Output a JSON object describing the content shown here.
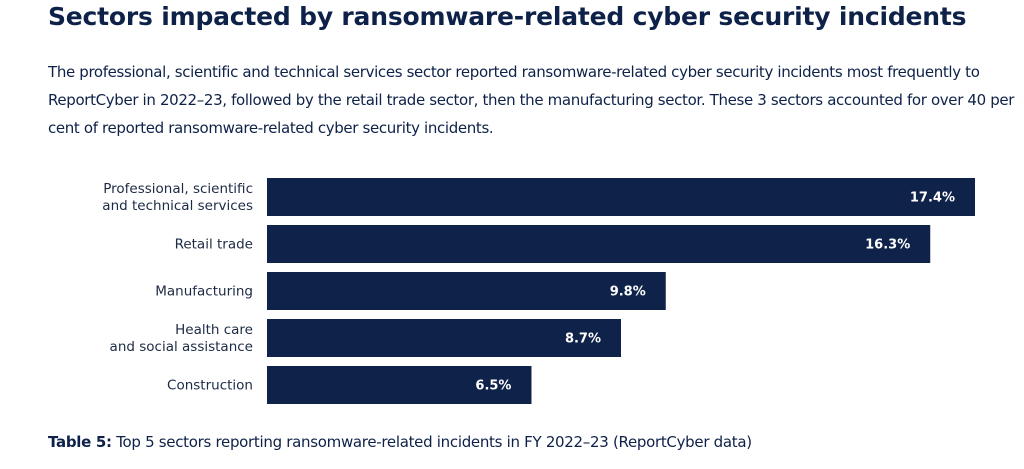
{
  "heading": "Sectors impacted by ransomware-related cyber security incidents",
  "intro": "The professional, scientific and technical services sector reported ransomware-related cyber security incidents most frequently to ReportCyber in 2022–23, followed by the retail trade sector, then the manufacturing sector. These 3 sectors accounted for over 40 per cent of reported ransomware-related cyber security incidents.",
  "caption": {
    "label": "Table 5:",
    "text": " Top 5 sectors reporting ransomware-related incidents in FY 2022–23 (ReportCyber data)"
  },
  "colors": {
    "bar": "#0f2249",
    "text": "#0e2148",
    "value_text": "#ffffff"
  },
  "chart_data": {
    "type": "bar",
    "orientation": "horizontal",
    "title": "",
    "xlabel": "",
    "ylabel": "",
    "categories": [
      [
        "Professional, scientific",
        "and technical services"
      ],
      [
        "Retail trade"
      ],
      [
        "Manufacturing"
      ],
      [
        "Health care",
        "and social assistance"
      ],
      [
        "Construction"
      ]
    ],
    "values": [
      17.4,
      16.3,
      9.8,
      8.7,
      6.5
    ],
    "value_labels": [
      "17.4%",
      "16.3%",
      "9.8%",
      "8.7%",
      "6.5%"
    ],
    "unit": "%",
    "xlim": [
      0,
      17.4
    ],
    "grid": false,
    "legend": "none"
  }
}
